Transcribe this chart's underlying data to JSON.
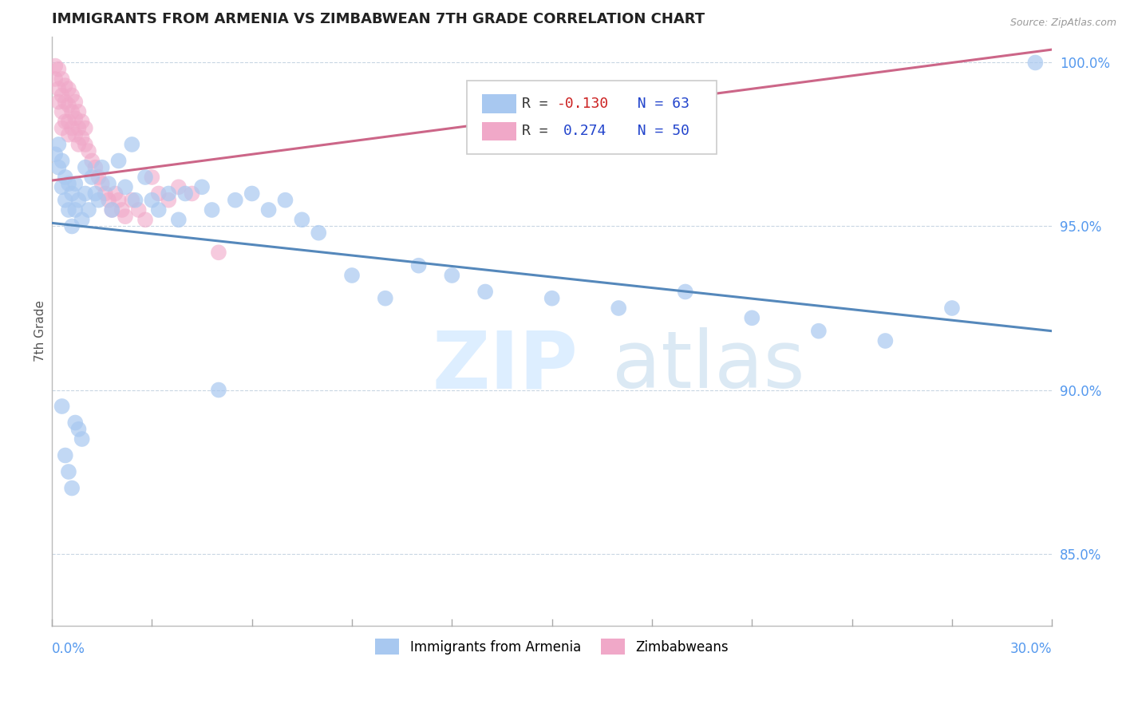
{
  "title": "IMMIGRANTS FROM ARMENIA VS ZIMBABWEAN 7TH GRADE CORRELATION CHART",
  "source": "Source: ZipAtlas.com",
  "ylabel": "7th Grade",
  "xlim": [
    0.0,
    0.3
  ],
  "ylim": [
    0.828,
    1.008
  ],
  "yticks": [
    0.85,
    0.9,
    0.95,
    1.0
  ],
  "ytick_labels": [
    "85.0%",
    "90.0%",
    "95.0%",
    "100.0%"
  ],
  "legend_blue_label": "Immigrants from Armenia",
  "legend_pink_label": "Zimbabweans",
  "blue_color": "#a8c8f0",
  "pink_color": "#f0a8c8",
  "blue_line_color": "#5588bb",
  "pink_line_color": "#cc6688",
  "blue_trend_x": [
    0.0,
    0.3
  ],
  "blue_trend_y": [
    0.951,
    0.918
  ],
  "pink_trend_x": [
    0.0,
    0.3
  ],
  "pink_trend_y": [
    0.964,
    1.004
  ],
  "blue_x": [
    0.001,
    0.002,
    0.002,
    0.003,
    0.003,
    0.004,
    0.004,
    0.005,
    0.005,
    0.006,
    0.006,
    0.007,
    0.007,
    0.008,
    0.009,
    0.01,
    0.01,
    0.011,
    0.012,
    0.013,
    0.014,
    0.015,
    0.017,
    0.018,
    0.02,
    0.022,
    0.024,
    0.025,
    0.028,
    0.03,
    0.032,
    0.035,
    0.038,
    0.04,
    0.045,
    0.048,
    0.05,
    0.055,
    0.06,
    0.065,
    0.07,
    0.075,
    0.08,
    0.09,
    0.1,
    0.11,
    0.12,
    0.13,
    0.15,
    0.17,
    0.19,
    0.21,
    0.23,
    0.25,
    0.27,
    0.295,
    0.003,
    0.004,
    0.005,
    0.006,
    0.007,
    0.008,
    0.009
  ],
  "blue_y": [
    0.972,
    0.968,
    0.975,
    0.962,
    0.97,
    0.958,
    0.965,
    0.955,
    0.963,
    0.95,
    0.96,
    0.955,
    0.963,
    0.958,
    0.952,
    0.96,
    0.968,
    0.955,
    0.965,
    0.96,
    0.958,
    0.968,
    0.963,
    0.955,
    0.97,
    0.962,
    0.975,
    0.958,
    0.965,
    0.958,
    0.955,
    0.96,
    0.952,
    0.96,
    0.962,
    0.955,
    0.9,
    0.958,
    0.96,
    0.955,
    0.958,
    0.952,
    0.948,
    0.935,
    0.928,
    0.938,
    0.935,
    0.93,
    0.928,
    0.925,
    0.93,
    0.922,
    0.918,
    0.915,
    0.925,
    1.0,
    0.895,
    0.88,
    0.875,
    0.87,
    0.89,
    0.888,
    0.885
  ],
  "pink_x": [
    0.001,
    0.001,
    0.002,
    0.002,
    0.002,
    0.003,
    0.003,
    0.003,
    0.003,
    0.004,
    0.004,
    0.004,
    0.005,
    0.005,
    0.005,
    0.005,
    0.006,
    0.006,
    0.006,
    0.007,
    0.007,
    0.007,
    0.008,
    0.008,
    0.008,
    0.009,
    0.009,
    0.01,
    0.01,
    0.011,
    0.012,
    0.013,
    0.014,
    0.015,
    0.016,
    0.017,
    0.018,
    0.019,
    0.02,
    0.021,
    0.022,
    0.024,
    0.026,
    0.028,
    0.03,
    0.032,
    0.035,
    0.038,
    0.042,
    0.05
  ],
  "pink_y": [
    0.999,
    0.995,
    0.998,
    0.992,
    0.988,
    0.995,
    0.99,
    0.985,
    0.98,
    0.993,
    0.988,
    0.982,
    0.992,
    0.987,
    0.982,
    0.978,
    0.99,
    0.985,
    0.98,
    0.988,
    0.983,
    0.978,
    0.985,
    0.98,
    0.975,
    0.982,
    0.977,
    0.98,
    0.975,
    0.973,
    0.97,
    0.968,
    0.965,
    0.963,
    0.96,
    0.958,
    0.955,
    0.96,
    0.958,
    0.955,
    0.953,
    0.958,
    0.955,
    0.952,
    0.965,
    0.96,
    0.958,
    0.962,
    0.96,
    0.942
  ]
}
